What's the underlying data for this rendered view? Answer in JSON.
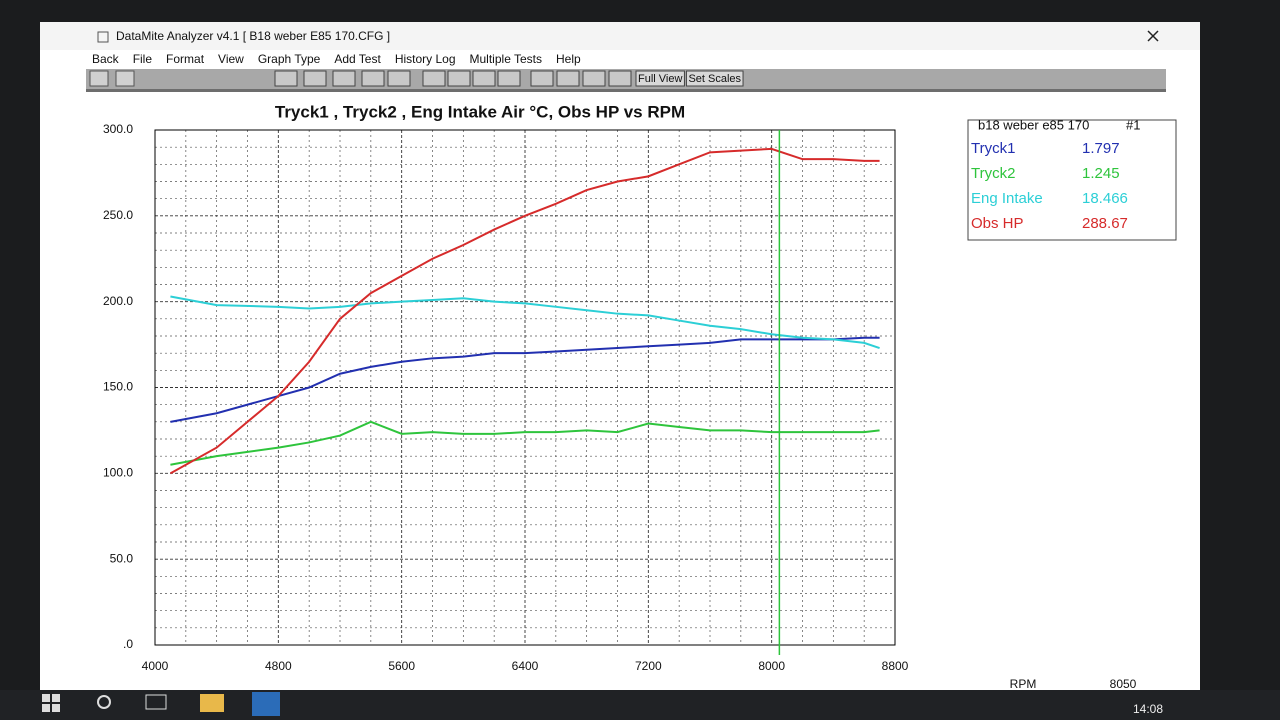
{
  "window": {
    "title": "DataMite Analyzer v4.1  [ B18 weber E85 170.CFG ]",
    "menu": [
      "Back",
      "File",
      "Format",
      "View",
      "Graph Type",
      "Add Test",
      "History Log",
      "Multiple Tests",
      "Help"
    ],
    "toolbar": [
      "Full View",
      "Set Scales"
    ]
  },
  "chart_data": {
    "type": "line",
    "title": "Tryck1 , Tryck2 , Eng Intake Air °C, Obs HP vs RPM",
    "xlabel": "RPM",
    "x": [
      4100,
      4400,
      4800,
      5000,
      5200,
      5400,
      5600,
      5800,
      6000,
      6200,
      6400,
      6600,
      6800,
      7000,
      7200,
      7400,
      7600,
      7800,
      8000,
      8200,
      8400,
      8600,
      8700
    ],
    "series": [
      {
        "name": "Tryck1",
        "color": "#2230b0",
        "values": [
          130,
          135,
          145,
          150,
          158,
          162,
          165,
          167,
          168,
          170,
          170,
          171,
          172,
          173,
          174,
          175,
          176,
          178,
          178,
          178,
          178,
          179,
          179
        ]
      },
      {
        "name": "Tryck2",
        "color": "#2ec43c",
        "values": [
          105,
          110,
          115,
          118,
          122,
          130,
          123,
          124,
          123,
          123,
          124,
          124,
          125,
          124,
          129,
          127,
          125,
          125,
          124,
          124,
          124,
          124,
          125
        ]
      },
      {
        "name": "Eng Intake",
        "color": "#2ccfd6",
        "values": [
          203,
          198,
          197,
          196,
          197,
          199,
          200,
          201,
          202,
          200,
          199,
          197,
          195,
          193,
          192,
          189,
          186,
          184,
          181,
          179,
          178,
          176,
          173
        ]
      },
      {
        "name": "Obs HP",
        "color": "#d62b2b",
        "values": [
          100,
          115,
          145,
          165,
          190,
          205,
          215,
          225,
          233,
          242,
          250,
          257,
          265,
          270,
          273,
          280,
          287,
          288,
          289,
          283,
          283,
          282,
          282
        ]
      }
    ],
    "legend_title": "b18 weber e85 170",
    "legend_test": "#1",
    "readouts": [
      1.797,
      1.245,
      18.466,
      288.67
    ],
    "cursor": 8050,
    "cursor_color": "#2ec43c",
    "xlim": [
      4000,
      8800
    ],
    "xticks": [
      4000,
      4800,
      5600,
      6400,
      7200,
      8000,
      8800
    ],
    "ylim": [
      0,
      300
    ],
    "yticks": [
      {
        "value": 0,
        "label": ".0"
      },
      {
        "value": 50,
        "label": "50.0"
      },
      {
        "value": 100,
        "label": "100.0"
      },
      {
        "value": 150,
        "label": "150.0"
      },
      {
        "value": 200,
        "label": "200.0"
      },
      {
        "value": 250,
        "label": "250.0"
      },
      {
        "value": 300,
        "label": "300.0"
      }
    ],
    "grid": true
  },
  "taskbar": {
    "time": "14:08"
  }
}
